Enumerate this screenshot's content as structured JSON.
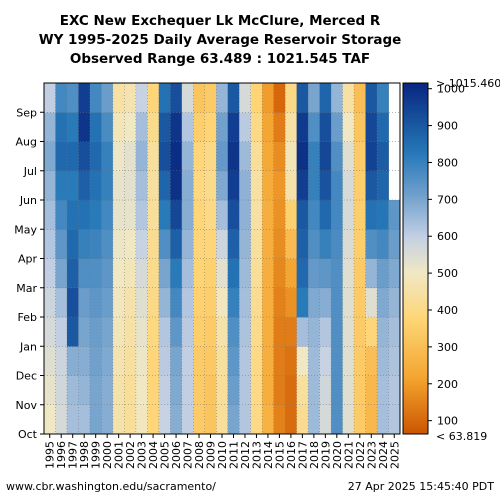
{
  "chart_data": {
    "type": "heatmap",
    "title_lines": [
      "EXC New Exchequer Lk McClure, Merced R",
      "WY 1995-2025 Daily Average Reservoir Storage",
      "Observed Range 63.489 : 1021.545 TAF"
    ],
    "x": [
      "1995",
      "1996",
      "1997",
      "1998",
      "1999",
      "2000",
      "2001",
      "2002",
      "2003",
      "2004",
      "2005",
      "2006",
      "2007",
      "2008",
      "2009",
      "2010",
      "2011",
      "2012",
      "2013",
      "2014",
      "2015",
      "2016",
      "2017",
      "2018",
      "2019",
      "2020",
      "2021",
      "2022",
      "2023",
      "2024",
      "2025"
    ],
    "y_months": [
      "Oct",
      "Nov",
      "Dec",
      "Jan",
      "Feb",
      "Mar",
      "Apr",
      "May",
      "Jun",
      "Jul",
      "Aug",
      "Sep"
    ],
    "colorbar": {
      "min_label": "< 63.819",
      "max_label": "> 1015.460",
      "ticks": [
        100,
        200,
        300,
        400,
        500,
        600,
        700,
        800,
        900,
        1000
      ],
      "range": [
        63.819,
        1015.46
      ]
    },
    "storage_taf_by_year_month": [
      [
        500,
        520,
        540,
        560,
        580,
        600,
        620,
        640,
        660,
        690,
        660,
        600
      ],
      [
        560,
        570,
        580,
        600,
        640,
        700,
        740,
        780,
        820,
        860,
        840,
        780
      ],
      [
        640,
        650,
        680,
        900,
        920,
        880,
        860,
        840,
        820,
        860,
        820,
        760
      ],
      [
        640,
        660,
        680,
        700,
        720,
        760,
        800,
        840,
        880,
        920,
        980,
        960
      ],
      [
        700,
        700,
        710,
        720,
        740,
        760,
        790,
        820,
        840,
        860,
        840,
        780
      ],
      [
        680,
        680,
        690,
        700,
        720,
        740,
        760,
        780,
        800,
        800,
        770,
        720
      ],
      [
        460,
        460,
        470,
        480,
        490,
        500,
        510,
        520,
        520,
        510,
        480,
        450
      ],
      [
        430,
        430,
        440,
        450,
        460,
        480,
        500,
        520,
        530,
        530,
        500,
        470
      ],
      [
        490,
        500,
        510,
        520,
        540,
        560,
        590,
        620,
        640,
        660,
        640,
        590
      ],
      [
        380,
        380,
        380,
        390,
        400,
        410,
        420,
        430,
        440,
        440,
        410,
        380
      ],
      [
        590,
        600,
        610,
        620,
        660,
        700,
        760,
        820,
        870,
        920,
        900,
        840
      ],
      [
        680,
        690,
        700,
        740,
        780,
        820,
        880,
        940,
        990,
        1000,
        980,
        920
      ],
      [
        600,
        600,
        600,
        610,
        620,
        640,
        660,
        680,
        680,
        660,
        620,
        560
      ],
      [
        340,
        340,
        340,
        350,
        360,
        370,
        380,
        380,
        390,
        380,
        350,
        320
      ],
      [
        320,
        320,
        330,
        340,
        350,
        360,
        380,
        400,
        410,
        400,
        370,
        340
      ],
      [
        430,
        430,
        440,
        460,
        490,
        530,
        580,
        640,
        690,
        730,
        710,
        660
      ],
      [
        700,
        720,
        740,
        760,
        800,
        840,
        880,
        920,
        960,
        980,
        960,
        900
      ],
      [
        620,
        620,
        620,
        630,
        640,
        650,
        660,
        670,
        670,
        650,
        610,
        560
      ],
      [
        400,
        400,
        400,
        410,
        420,
        430,
        440,
        450,
        450,
        430,
        400,
        370
      ],
      [
        260,
        250,
        250,
        250,
        250,
        250,
        250,
        250,
        240,
        230,
        220,
        200
      ],
      [
        150,
        140,
        140,
        140,
        150,
        160,
        170,
        180,
        190,
        170,
        140,
        100
      ],
      [
        110,
        110,
        120,
        140,
        180,
        220,
        290,
        360,
        460,
        480,
        450,
        400
      ],
      [
        420,
        440,
        500,
        640,
        820,
        860,
        880,
        900,
        960,
        990,
        970,
        900
      ],
      [
        650,
        650,
        650,
        660,
        690,
        730,
        760,
        780,
        800,
        800,
        760,
        700
      ],
      [
        560,
        570,
        590,
        620,
        680,
        740,
        800,
        860,
        910,
        940,
        920,
        870
      ],
      [
        760,
        760,
        760,
        760,
        760,
        760,
        770,
        780,
        780,
        760,
        720,
        660
      ],
      [
        540,
        540,
        540,
        540,
        540,
        540,
        550,
        560,
        560,
        540,
        500,
        450
      ],
      [
        340,
        340,
        340,
        340,
        340,
        340,
        350,
        350,
        350,
        340,
        320,
        300
      ],
      [
        280,
        280,
        300,
        380,
        540,
        660,
        760,
        840,
        900,
        950,
        940,
        900
      ],
      [
        640,
        640,
        650,
        660,
        690,
        720,
        780,
        830,
        870,
        890,
        860,
        800
      ],
      [
        620,
        620,
        630,
        640,
        660,
        690,
        720,
        740,
        null,
        null,
        null,
        null
      ]
    ]
  },
  "footer": {
    "left": "www.cbr.washington.edu/sacramento/",
    "right": "27 Apr 2025 15:45:40 PDT"
  }
}
